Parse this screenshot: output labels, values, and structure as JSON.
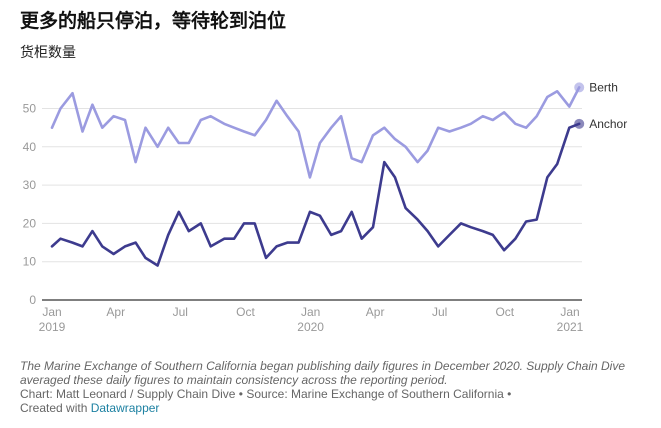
{
  "title": "更多的船只停泊，等待轮到泊位",
  "subtitle": "货柜数量",
  "notes": {
    "description": "The Marine Exchange of Southern California began publishing daily figures in December 2020. Supply Chain Dive averaged these daily figures to maintain consistency across the reporting period.",
    "source": "Chart: Matt Leonard / Supply Chain Dive • Source: Marine Exchange of Southern California •",
    "created_with": "Created with",
    "tool_link": "Datawrapper"
  },
  "chart_data": {
    "type": "line",
    "title": "更多的船只停泊，等待轮到泊位",
    "ylabel": "货柜数量",
    "ylim": [
      0,
      57
    ],
    "yticks": [
      0,
      10,
      20,
      30,
      40,
      50
    ],
    "grid": true,
    "xticks": [
      {
        "date": "2019-01-01",
        "label": "Jan",
        "year": "2019"
      },
      {
        "date": "2019-04-01",
        "label": "Apr"
      },
      {
        "date": "2019-07-01",
        "label": "Jul"
      },
      {
        "date": "2019-10-01",
        "label": "Oct"
      },
      {
        "date": "2020-01-01",
        "label": "Jan",
        "year": "2020"
      },
      {
        "date": "2020-04-01",
        "label": "Apr"
      },
      {
        "date": "2020-07-01",
        "label": "Jul"
      },
      {
        "date": "2020-10-01",
        "label": "Oct"
      },
      {
        "date": "2021-01-01",
        "label": "Jan",
        "year": "2021"
      }
    ],
    "x": [
      "2019-01-01",
      "2019-01-13",
      "2019-01-30",
      "2019-02-13",
      "2019-02-27",
      "2019-03-13",
      "2019-03-29",
      "2019-04-14",
      "2019-04-29",
      "2019-05-13",
      "2019-05-30",
      "2019-06-14",
      "2019-06-29",
      "2019-07-13",
      "2019-07-30",
      "2019-08-13",
      "2019-09-01",
      "2019-09-15",
      "2019-09-29",
      "2019-10-14",
      "2019-10-30",
      "2019-11-14",
      "2019-11-29",
      "2019-12-15",
      "2019-12-31",
      "2020-01-14",
      "2020-01-30",
      "2020-02-13",
      "2020-02-28",
      "2020-03-13",
      "2020-03-29",
      "2020-04-14",
      "2020-04-29",
      "2020-05-14",
      "2020-05-31",
      "2020-06-14",
      "2020-06-29",
      "2020-07-15",
      "2020-07-31",
      "2020-08-14",
      "2020-08-31",
      "2020-09-14",
      "2020-09-30",
      "2020-10-16",
      "2020-10-31",
      "2020-11-15",
      "2020-11-30",
      "2020-12-14",
      "2020-12-31",
      "2021-01-14"
    ],
    "series": [
      {
        "name": "Berth",
        "color": "#9b9be0",
        "values": [
          45,
          50,
          54,
          44,
          51,
          45,
          48,
          47,
          36,
          45,
          40,
          45,
          41,
          41,
          47,
          48,
          46,
          45,
          44,
          43,
          47,
          52,
          48,
          44,
          32,
          41,
          45,
          48,
          37,
          36,
          43,
          45,
          42,
          40,
          36,
          39,
          45,
          44,
          45,
          46,
          48,
          47,
          49,
          46,
          45,
          48,
          53,
          54.5,
          50.5,
          55.5
        ]
      },
      {
        "name": "Anchor",
        "color": "#3d3b8e",
        "values": [
          14,
          16,
          15,
          14,
          18,
          14,
          12,
          14,
          15,
          11,
          9,
          17,
          23,
          18,
          20,
          14,
          16,
          16,
          20,
          20,
          11,
          14,
          15,
          15,
          23,
          22,
          17,
          18,
          23,
          16,
          19,
          36,
          32,
          24,
          21,
          18,
          14,
          17,
          20,
          19,
          18,
          17,
          13,
          16,
          20.5,
          21,
          32,
          35.5,
          45,
          46
        ]
      }
    ]
  }
}
